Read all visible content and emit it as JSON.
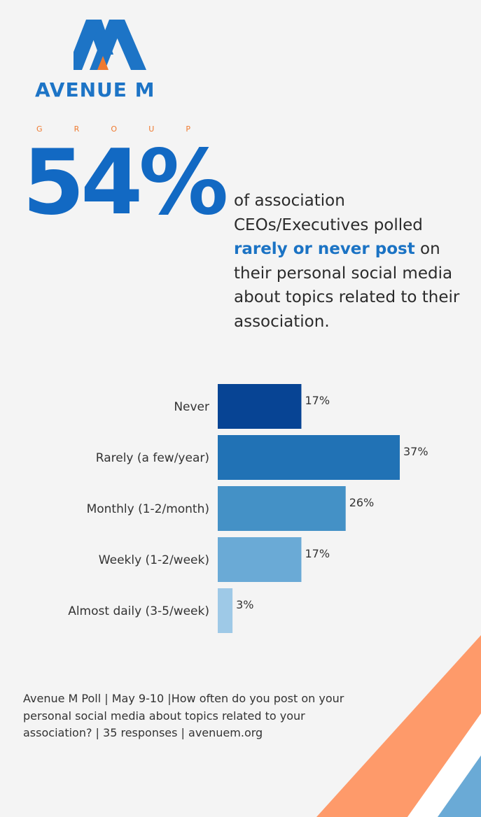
{
  "logo": {
    "name": "AVENUE M",
    "sub_letters": [
      "G",
      "R",
      "O",
      "U",
      "P"
    ],
    "colors": {
      "blue": "#1d74c6",
      "orange": "#ef7a30"
    }
  },
  "headline": {
    "stat": "54%",
    "text_before": "of association CEOs/Executives polled ",
    "text_highlight": "rarely or never post",
    "text_after": " on their personal social media about topics related to their association."
  },
  "chart_data": {
    "type": "bar",
    "orientation": "horizontal",
    "categories": [
      "Never",
      "Rarely (a few/year)",
      "Monthly (1-2/month)",
      "Weekly (1-2/week)",
      "Almost daily (3-5/week)"
    ],
    "values": [
      17,
      37,
      26,
      17,
      3
    ],
    "value_labels": [
      "17%",
      "37%",
      "26%",
      "17%",
      "3%"
    ],
    "colors": [
      "#074494",
      "#2172b5",
      "#4491c6",
      "#6aaad6",
      "#9ec9e7"
    ],
    "xlim": [
      0,
      37
    ],
    "grid": false
  },
  "footer": {
    "text": "Avenue M Poll | May 9-10 |How often do you post on your personal social media about topics related to your association? | 35 responses | avenuem.org"
  },
  "decor_colors": {
    "orange": "#fe9a6a",
    "blue": "#6aaad6",
    "white": "#ffffff"
  }
}
